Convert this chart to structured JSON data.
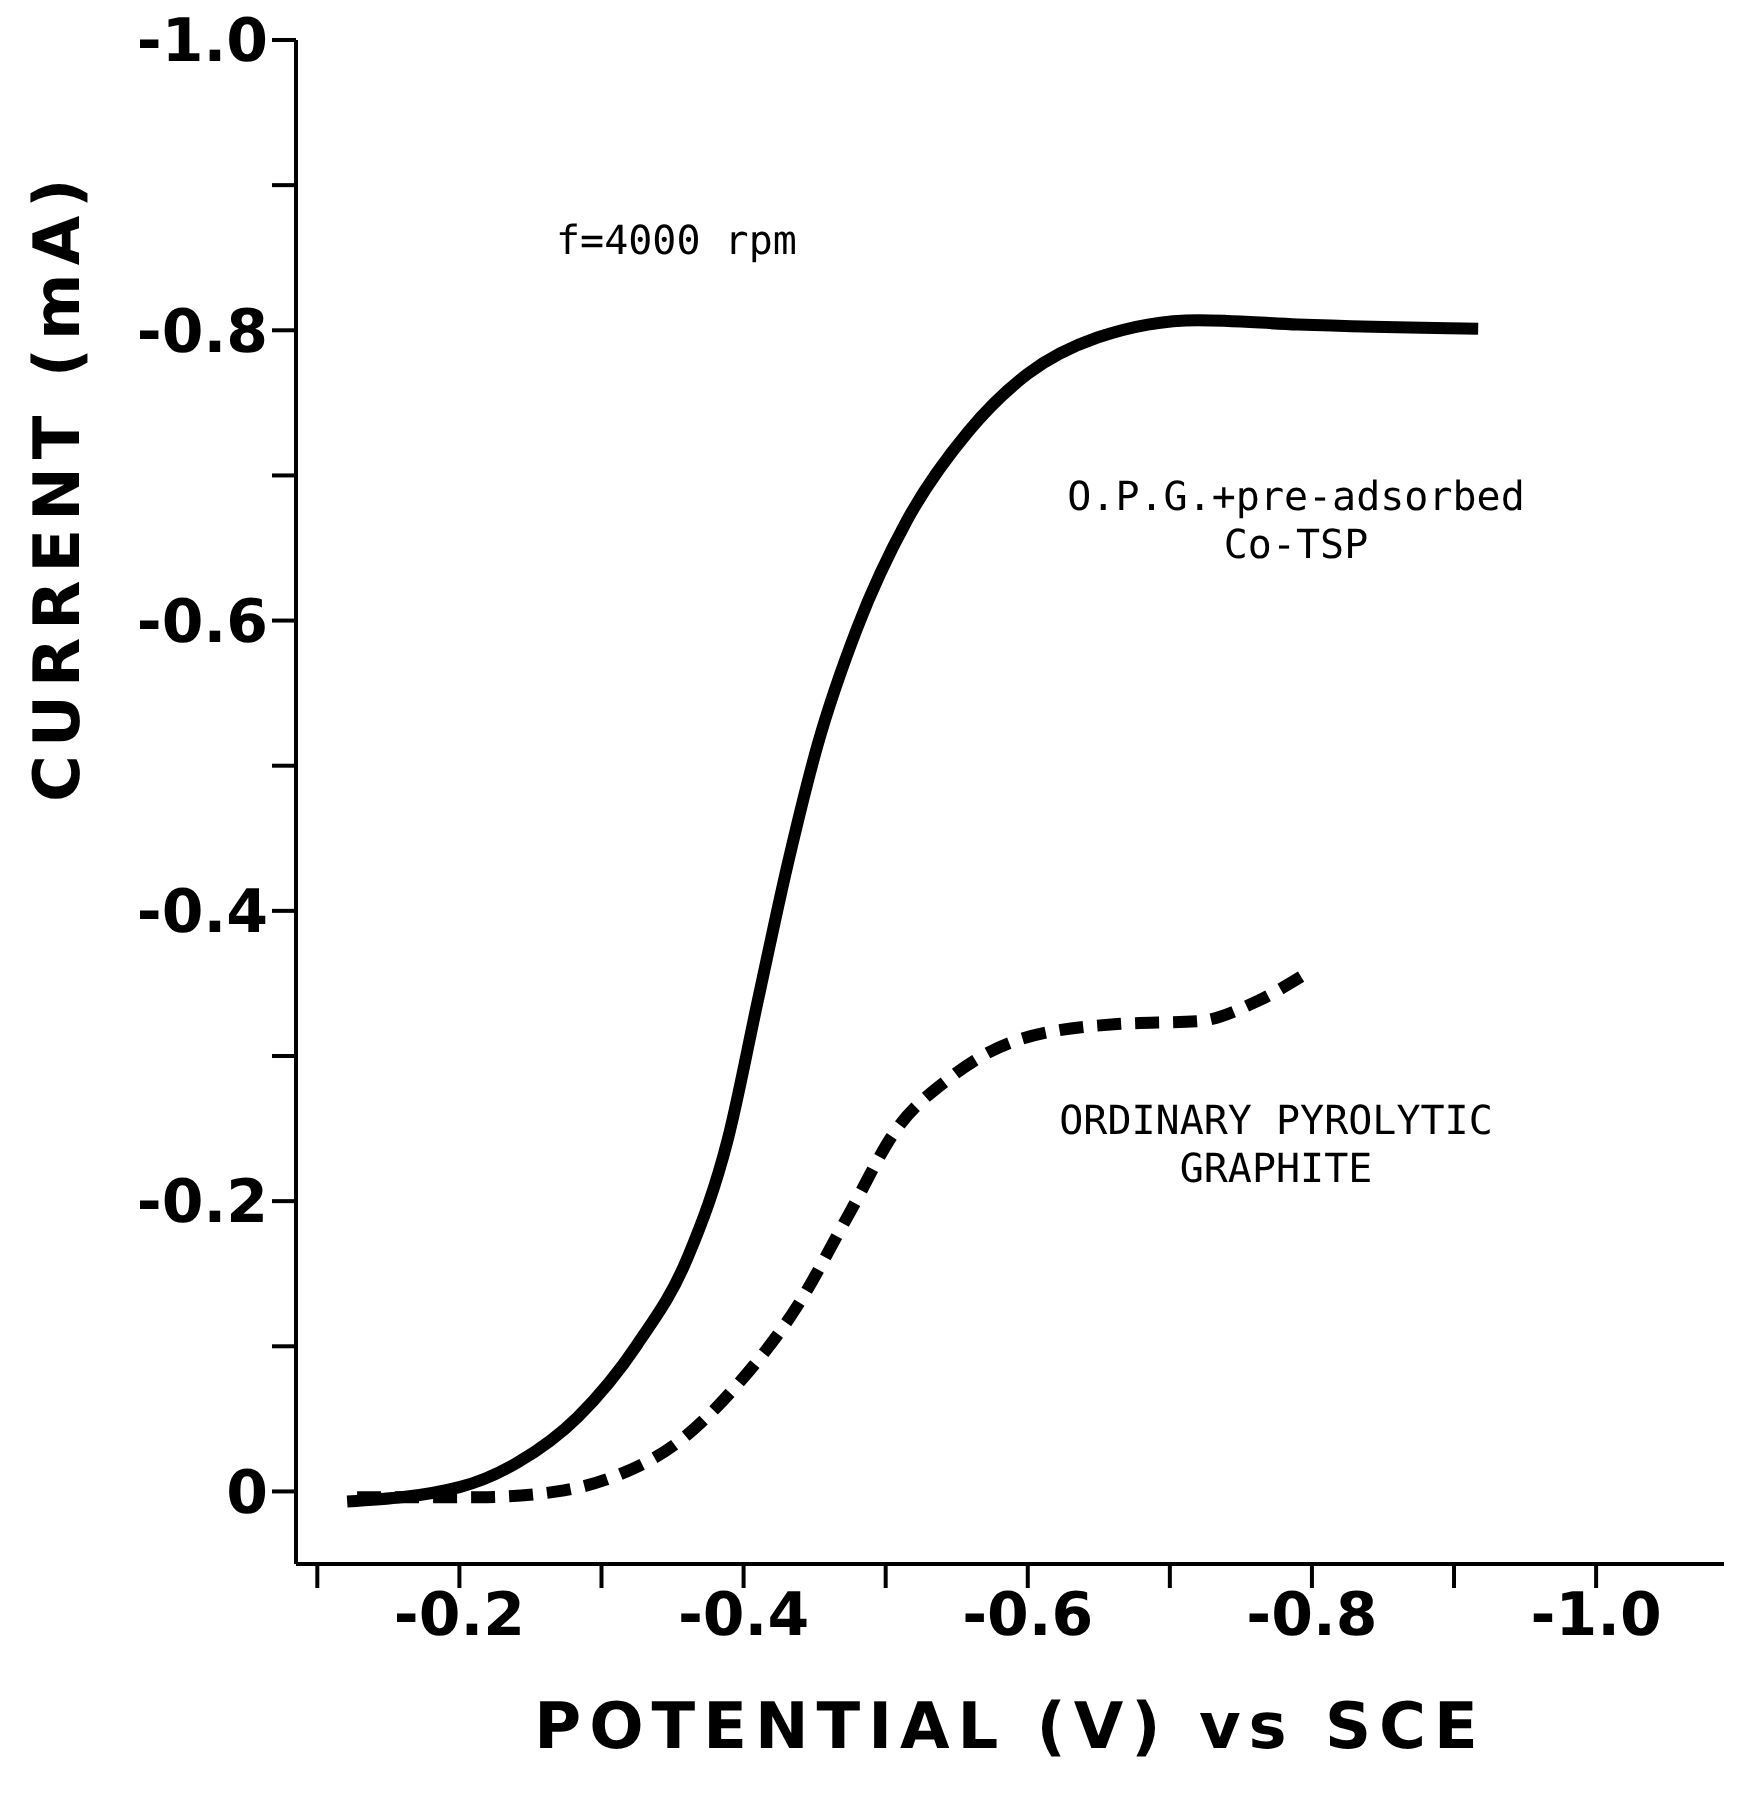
{
  "chart_data": {
    "type": "line",
    "xlabel": "POTENTIAL (V) vs SCE",
    "ylabel": "CURRENT (mA)",
    "xlim": [
      -0.085,
      -1.09
    ],
    "ylim": [
      0.05,
      -1.0
    ],
    "xticks": [
      {
        "value": -0.1,
        "label": null
      },
      {
        "value": -0.2,
        "label": "-0.2"
      },
      {
        "value": -0.3,
        "label": null
      },
      {
        "value": -0.4,
        "label": "-0.4"
      },
      {
        "value": -0.5,
        "label": null
      },
      {
        "value": -0.6,
        "label": "-0.6"
      },
      {
        "value": -0.7,
        "label": null
      },
      {
        "value": -0.8,
        "label": "-0.8"
      },
      {
        "value": -0.9,
        "label": null
      },
      {
        "value": -1.0,
        "label": "-1.0"
      }
    ],
    "yticks": [
      0,
      {
        "value": -0.1,
        "label": null
      },
      -0.2,
      {
        "value": -0.3,
        "label": null
      },
      -0.4,
      {
        "value": -0.5,
        "label": null
      },
      -0.6,
      {
        "value": -0.7,
        "label": null
      },
      -0.8,
      {
        "value": -0.9,
        "label": null
      },
      {
        "value": -1.0,
        "label": "-1.0"
      }
    ],
    "grid": false,
    "legend": false,
    "marker": "none",
    "annotations": [
      "f=4000 rpm"
    ],
    "series": [
      {
        "name": "O.P.G.+pre-adsorbed Co-TSP",
        "color": "#000000",
        "line_style": "solid",
        "x": [
          -0.121,
          -0.2,
          -0.241,
          -0.283,
          -0.325,
          -0.361,
          -0.389,
          -0.41,
          -0.431,
          -0.452,
          -0.48,
          -0.515,
          -0.558,
          -0.6,
          -0.649,
          -0.72,
          -0.79,
          -0.917
        ],
        "values": [
          0.007,
          -0.003,
          -0.02,
          -0.051,
          -0.101,
          -0.162,
          -0.243,
          -0.338,
          -0.432,
          -0.514,
          -0.595,
          -0.669,
          -0.73,
          -0.77,
          -0.795,
          -0.807,
          -0.804,
          -0.801
        ]
      },
      {
        "name": "ORDINARY PYROLYTIC GRAPHITE",
        "color": "#000000",
        "line_style": "dashed",
        "x": [
          -0.128,
          -0.213,
          -0.269,
          -0.311,
          -0.354,
          -0.396,
          -0.438,
          -0.473,
          -0.508,
          -0.544,
          -0.593,
          -0.663,
          -0.72,
          -0.762,
          -0.793
        ],
        "values": [
          0.004,
          0.004,
          0,
          -0.011,
          -0.034,
          -0.074,
          -0.128,
          -0.189,
          -0.25,
          -0.284,
          -0.311,
          -0.322,
          -0.324,
          -0.338,
          -0.355
        ]
      }
    ]
  }
}
